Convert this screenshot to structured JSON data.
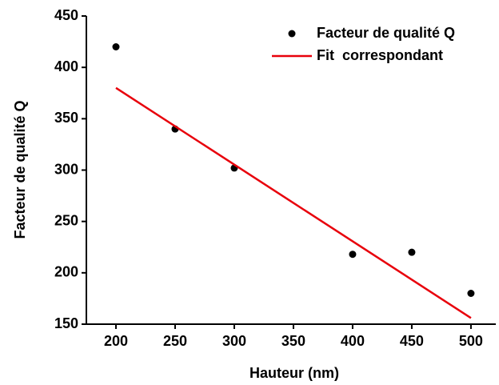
{
  "chart_data": {
    "type": "scatter",
    "x_label": "Hauteur (nm)",
    "y_label": "Facteur de qualité Q",
    "xlim": [
      175,
      521
    ],
    "ylim": [
      150,
      450
    ],
    "xticks": [
      200,
      250,
      300,
      350,
      400,
      450,
      500
    ],
    "yticks": [
      150,
      200,
      250,
      300,
      350,
      400,
      450
    ],
    "grid": false,
    "series": [
      {
        "name": "Facteur de qualité Q",
        "color": "#000000",
        "style": "marker",
        "x": [
          200,
          250,
          300,
          400,
          450,
          500
        ],
        "values": [
          420,
          340,
          302,
          218,
          220,
          180
        ]
      },
      {
        "name": "Fit  correspondant",
        "color": "#e8000b",
        "style": "line",
        "x": [
          200,
          500
        ],
        "values": [
          380,
          156
        ]
      }
    ]
  }
}
